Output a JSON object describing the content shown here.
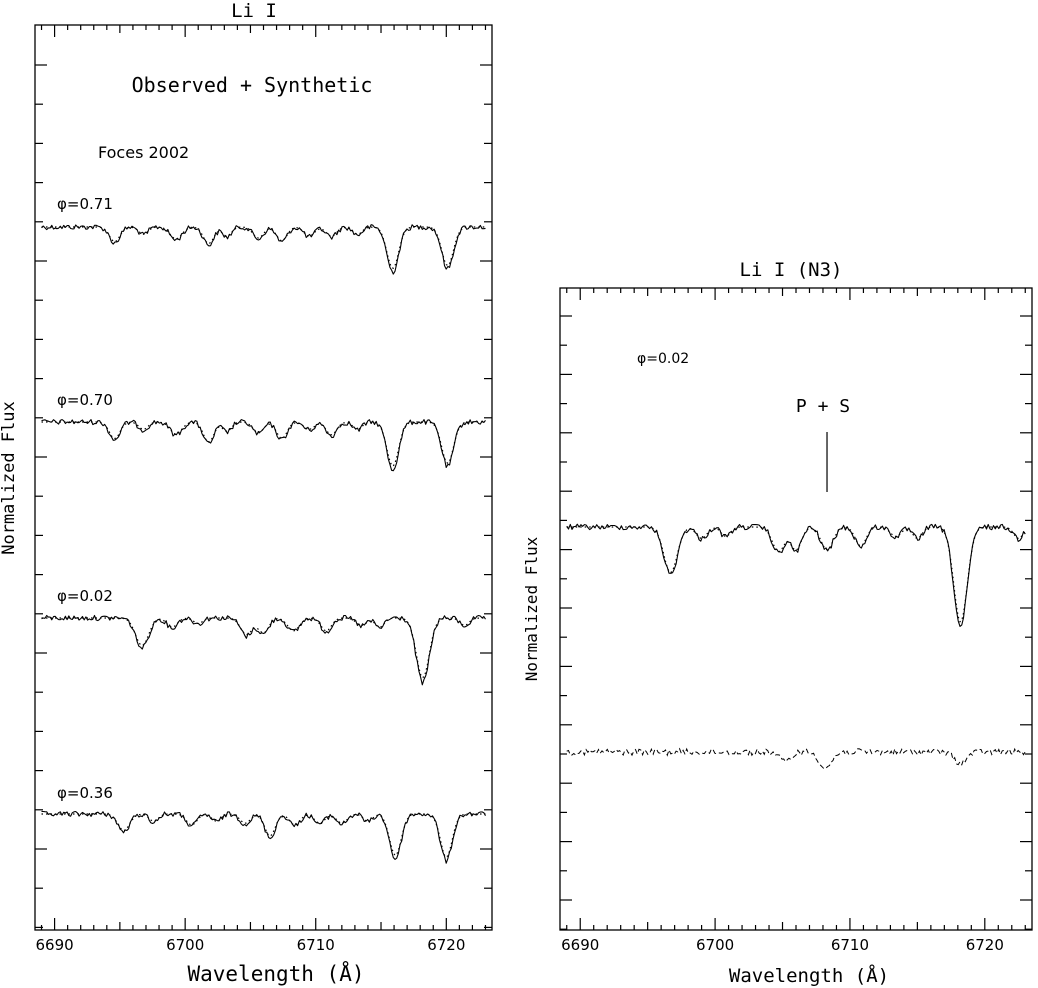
{
  "chart_data": [
    {
      "type": "line",
      "title": "Li  I",
      "xlabel": "Wavelength (Å)",
      "ylabel": "Normalized Flux",
      "xlim": [
        6688.5,
        6723.5
      ],
      "xticks": [
        "6690",
        "6700",
        "6710",
        "6720"
      ],
      "annotation": "Observed + Synthetic",
      "source_label": "Foces 2002",
      "line_styles": {
        "observed": "solid",
        "synthetic": "dotted"
      },
      "spectra": [
        {
          "phase_label": "φ=0.71",
          "lines": [
            {
              "center": 6694.6,
              "depth": 0.16,
              "width": 0.4
            },
            {
              "center": 6696.8,
              "depth": 0.08,
              "width": 0.35
            },
            {
              "center": 6699.3,
              "depth": 0.13,
              "width": 0.45
            },
            {
              "center": 6701.8,
              "depth": 0.18,
              "width": 0.4
            },
            {
              "center": 6703.2,
              "depth": 0.1,
              "width": 0.35
            },
            {
              "center": 6705.6,
              "depth": 0.12,
              "width": 0.4
            },
            {
              "center": 6707.4,
              "depth": 0.15,
              "width": 0.4
            },
            {
              "center": 6709.5,
              "depth": 0.1,
              "width": 0.4
            },
            {
              "center": 6711.2,
              "depth": 0.1,
              "width": 0.4
            },
            {
              "center": 6713.2,
              "depth": 0.08,
              "width": 0.35
            },
            {
              "center": 6715.9,
              "depth": 0.45,
              "width": 0.45
            },
            {
              "center": 6720.1,
              "depth": 0.42,
              "width": 0.45
            }
          ]
        },
        {
          "phase_label": "φ=0.70",
          "lines": [
            {
              "center": 6694.6,
              "depth": 0.18,
              "width": 0.4
            },
            {
              "center": 6696.8,
              "depth": 0.08,
              "width": 0.35
            },
            {
              "center": 6699.3,
              "depth": 0.13,
              "width": 0.45
            },
            {
              "center": 6701.8,
              "depth": 0.22,
              "width": 0.4
            },
            {
              "center": 6703.2,
              "depth": 0.1,
              "width": 0.35
            },
            {
              "center": 6705.6,
              "depth": 0.12,
              "width": 0.4
            },
            {
              "center": 6707.4,
              "depth": 0.18,
              "width": 0.4
            },
            {
              "center": 6709.5,
              "depth": 0.08,
              "width": 0.4
            },
            {
              "center": 6711.2,
              "depth": 0.14,
              "width": 0.4
            },
            {
              "center": 6713.2,
              "depth": 0.08,
              "width": 0.35
            },
            {
              "center": 6715.9,
              "depth": 0.48,
              "width": 0.45
            },
            {
              "center": 6720.1,
              "depth": 0.45,
              "width": 0.45
            }
          ]
        },
        {
          "phase_label": "φ=0.02",
          "lines": [
            {
              "center": 6696.7,
              "depth": 0.3,
              "width": 0.5
            },
            {
              "center": 6699.0,
              "depth": 0.1,
              "width": 0.4
            },
            {
              "center": 6701.0,
              "depth": 0.06,
              "width": 0.35
            },
            {
              "center": 6704.7,
              "depth": 0.18,
              "width": 0.45
            },
            {
              "center": 6706.0,
              "depth": 0.16,
              "width": 0.4
            },
            {
              "center": 6708.3,
              "depth": 0.14,
              "width": 0.45
            },
            {
              "center": 6710.8,
              "depth": 0.14,
              "width": 0.4
            },
            {
              "center": 6713.5,
              "depth": 0.08,
              "width": 0.4
            },
            {
              "center": 6714.9,
              "depth": 0.1,
              "width": 0.35
            },
            {
              "center": 6718.2,
              "depth": 0.65,
              "width": 0.5
            },
            {
              "center": 6721.4,
              "depth": 0.08,
              "width": 0.35
            }
          ]
        },
        {
          "phase_label": "φ=0.36",
          "lines": [
            {
              "center": 6695.3,
              "depth": 0.18,
              "width": 0.45
            },
            {
              "center": 6697.6,
              "depth": 0.08,
              "width": 0.35
            },
            {
              "center": 6700.5,
              "depth": 0.12,
              "width": 0.4
            },
            {
              "center": 6702.4,
              "depth": 0.08,
              "width": 0.35
            },
            {
              "center": 6704.6,
              "depth": 0.1,
              "width": 0.4
            },
            {
              "center": 6706.5,
              "depth": 0.24,
              "width": 0.4
            },
            {
              "center": 6708.4,
              "depth": 0.12,
              "width": 0.4
            },
            {
              "center": 6710.3,
              "depth": 0.1,
              "width": 0.4
            },
            {
              "center": 6712.0,
              "depth": 0.1,
              "width": 0.4
            },
            {
              "center": 6714.0,
              "depth": 0.08,
              "width": 0.35
            },
            {
              "center": 6716.1,
              "depth": 0.45,
              "width": 0.45
            },
            {
              "center": 6720.0,
              "depth": 0.47,
              "width": 0.45
            }
          ]
        }
      ]
    },
    {
      "type": "line",
      "title": "Li  I (N3)",
      "xlabel": "Wavelength (Å)",
      "ylabel": "Normalized Flux",
      "xlim": [
        6688.5,
        6723.5
      ],
      "xticks": [
        "6690",
        "6700",
        "6710",
        "6720"
      ],
      "phase_label": "φ=0.02",
      "marker_label": "P + S",
      "marker_wavelength": 6708.3,
      "line_styles": {
        "observed": "solid",
        "synthetic": "dotted",
        "residual": "dashed"
      },
      "lines": [
        {
          "center": 6696.7,
          "depth": 0.48,
          "width": 0.5
        },
        {
          "center": 6699.0,
          "depth": 0.12,
          "width": 0.4
        },
        {
          "center": 6700.8,
          "depth": 0.1,
          "width": 0.35
        },
        {
          "center": 6704.7,
          "depth": 0.26,
          "width": 0.45
        },
        {
          "center": 6706.0,
          "depth": 0.24,
          "width": 0.4
        },
        {
          "center": 6708.3,
          "depth": 0.24,
          "width": 0.45
        },
        {
          "center": 6710.8,
          "depth": 0.2,
          "width": 0.4
        },
        {
          "center": 6713.4,
          "depth": 0.1,
          "width": 0.4
        },
        {
          "center": 6715.0,
          "depth": 0.12,
          "width": 0.35
        },
        {
          "center": 6718.2,
          "depth": 1.0,
          "width": 0.5
        },
        {
          "center": 6722.5,
          "depth": 0.12,
          "width": 0.35
        }
      ],
      "residual_lines": [
        {
          "center": 6705.2,
          "depth": 0.2,
          "width": 0.4
        },
        {
          "center": 6708.2,
          "depth": 0.32,
          "width": 0.45
        },
        {
          "center": 6718.2,
          "depth": 0.22,
          "width": 0.45
        }
      ]
    }
  ]
}
